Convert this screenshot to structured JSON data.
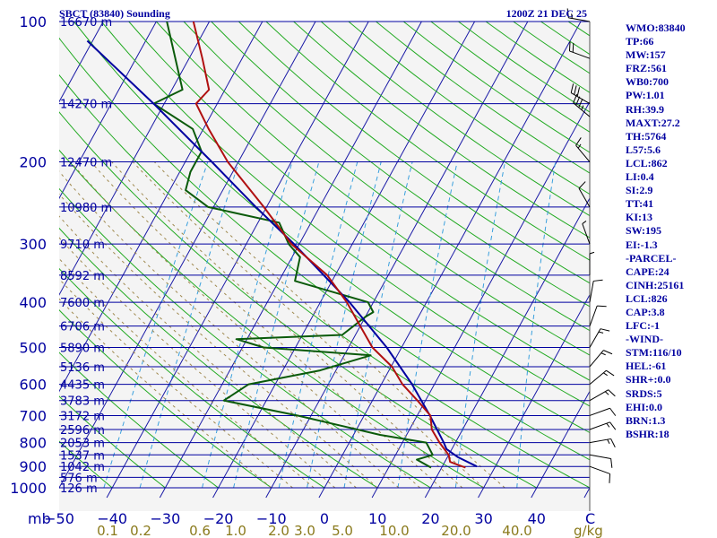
{
  "header": {
    "station": "SBCT (83840) Sounding",
    "time": "1200Z 21 DEC 25"
  },
  "colors": {
    "isobar": "#0000a0",
    "isotherm": "#1a1aa6",
    "dry_adiabat": "#22aa22",
    "mixing_ratio": "#3aa0dd",
    "moist_adiabat": "#a08a50",
    "temperature": "#b01010",
    "dewpoint": "#0a5a0a",
    "parcel": "#0000a0",
    "wind_barb": "#000000"
  },
  "chart_data": {
    "type": "skew-t",
    "title": "SBCT (83840) Sounding",
    "valid_time": "1200Z 21 DEC 25",
    "xlabel": "C",
    "pressure_unit": "mb",
    "mixing_ratio_unit": "g/kg",
    "xlim": [
      -50,
      50
    ],
    "ylim_mb": [
      1000,
      100
    ],
    "y_scale": "log",
    "pressure_ticks": [
      100,
      200,
      300,
      400,
      500,
      600,
      700,
      800,
      900,
      1000
    ],
    "temperature_ticks": [
      -50,
      -40,
      -30,
      -20,
      -10,
      0,
      10,
      20,
      30,
      40
    ],
    "mixing_ratio_labels": [
      "0.1",
      "0.2",
      "0.6",
      "1.0",
      "2.0",
      "3.0",
      "5.0",
      "10.0",
      "20.0",
      "40.0"
    ],
    "height_labels": [
      {
        "p": 100,
        "label": "16670 m"
      },
      {
        "p": 150,
        "label": "14270 m"
      },
      {
        "p": 200,
        "label": "12470 m"
      },
      {
        "p": 250,
        "label": "10980 m"
      },
      {
        "p": 300,
        "label": "9710 m"
      },
      {
        "p": 350,
        "label": "8592 m"
      },
      {
        "p": 400,
        "label": "7600 m"
      },
      {
        "p": 450,
        "label": "6706 m"
      },
      {
        "p": 500,
        "label": "5890 m"
      },
      {
        "p": 550,
        "label": "5136 m"
      },
      {
        "p": 600,
        "label": "4435 m"
      },
      {
        "p": 650,
        "label": "3783 m"
      },
      {
        "p": 700,
        "label": "3172 m"
      },
      {
        "p": 750,
        "label": "2596 m"
      },
      {
        "p": 800,
        "label": "2053 m"
      },
      {
        "p": 850,
        "label": "1537 m"
      },
      {
        "p": 900,
        "label": "1042 m"
      },
      {
        "p": 950,
        "label": "576 m"
      },
      {
        "p": 1000,
        "label": "126 m"
      }
    ],
    "series": [
      {
        "key": "temperature",
        "points": [
          {
            "p": 905,
            "t": 24.5
          },
          {
            "p": 880,
            "t": 21.0
          },
          {
            "p": 850,
            "t": 20.0
          },
          {
            "p": 800,
            "t": 17.0
          },
          {
            "p": 750,
            "t": 14.2
          },
          {
            "p": 700,
            "t": 12.5
          },
          {
            "p": 650,
            "t": 8.5
          },
          {
            "p": 600,
            "t": 4.0
          },
          {
            "p": 550,
            "t": 0.2
          },
          {
            "p": 500,
            "t": -5.5
          },
          {
            "p": 450,
            "t": -10.0
          },
          {
            "p": 400,
            "t": -15.0
          },
          {
            "p": 350,
            "t": -21.5
          },
          {
            "p": 300,
            "t": -31.5
          },
          {
            "p": 250,
            "t": -40.5
          },
          {
            "p": 200,
            "t": -52.0
          },
          {
            "p": 170,
            "t": -59.0
          },
          {
            "p": 150,
            "t": -64.0
          },
          {
            "p": 140,
            "t": -63.0
          },
          {
            "p": 120,
            "t": -67.5
          },
          {
            "p": 100,
            "t": -73.0
          }
        ]
      },
      {
        "key": "dewpoint",
        "points": [
          {
            "p": 905,
            "t": 18.0
          },
          {
            "p": 870,
            "t": 14.5
          },
          {
            "p": 850,
            "t": 17.0
          },
          {
            "p": 800,
            "t": 14.5
          },
          {
            "p": 770,
            "t": 5.0
          },
          {
            "p": 700,
            "t": -12.5
          },
          {
            "p": 650,
            "t": -28.0
          },
          {
            "p": 600,
            "t": -25.0
          },
          {
            "p": 560,
            "t": -13.0
          },
          {
            "p": 520,
            "t": -5.0
          },
          {
            "p": 500,
            "t": -26.0
          },
          {
            "p": 480,
            "t": -32.0
          },
          {
            "p": 470,
            "t": -12.5
          },
          {
            "p": 430,
            "t": -10.0
          },
          {
            "p": 420,
            "t": -9.0
          },
          {
            "p": 400,
            "t": -11.0
          },
          {
            "p": 360,
            "t": -27.0
          },
          {
            "p": 320,
            "t": -28.5
          },
          {
            "p": 300,
            "t": -32.0
          },
          {
            "p": 270,
            "t": -36.0
          },
          {
            "p": 250,
            "t": -51.0
          },
          {
            "p": 230,
            "t": -57.0
          },
          {
            "p": 210,
            "t": -58.0
          },
          {
            "p": 190,
            "t": -58.0
          },
          {
            "p": 170,
            "t": -62.0
          },
          {
            "p": 150,
            "t": -72.0
          },
          {
            "p": 140,
            "t": -68.0
          },
          {
            "p": 100,
            "t": -78.0
          }
        ]
      },
      {
        "key": "parcel",
        "points": [
          {
            "p": 900,
            "t": 26.5
          },
          {
            "p": 860,
            "t": 22.0
          },
          {
            "p": 826,
            "t": 19.0
          },
          {
            "p": 800,
            "t": 17.8
          },
          {
            "p": 700,
            "t": 12.4
          },
          {
            "p": 600,
            "t": 5.8
          },
          {
            "p": 500,
            "t": -2.8
          },
          {
            "p": 400,
            "t": -14.5
          },
          {
            "p": 300,
            "t": -31.0
          },
          {
            "p": 250,
            "t": -42.0
          },
          {
            "p": 200,
            "t": -55.0
          },
          {
            "p": 150,
            "t": -72.0
          },
          {
            "p": 110,
            "t": -91.0
          }
        ]
      }
    ],
    "winds": [
      {
        "p": 900,
        "dir": 110,
        "kt": 10
      },
      {
        "p": 850,
        "dir": 100,
        "kt": 10
      },
      {
        "p": 800,
        "dir": 80,
        "kt": 15
      },
      {
        "p": 750,
        "dir": 70,
        "kt": 15
      },
      {
        "p": 700,
        "dir": 70,
        "kt": 10
      },
      {
        "p": 650,
        "dir": 60,
        "kt": 15
      },
      {
        "p": 600,
        "dir": 50,
        "kt": 15
      },
      {
        "p": 550,
        "dir": 40,
        "kt": 15
      },
      {
        "p": 500,
        "dir": 30,
        "kt": 15
      },
      {
        "p": 450,
        "dir": 20,
        "kt": 10
      },
      {
        "p": 400,
        "dir": 10,
        "kt": 10
      },
      {
        "p": 350,
        "dir": 360,
        "kt": 5
      },
      {
        "p": 300,
        "dir": 340,
        "kt": 5
      },
      {
        "p": 250,
        "dir": 330,
        "kt": 10
      },
      {
        "p": 200,
        "dir": 320,
        "kt": 15
      },
      {
        "p": 160,
        "dir": 310,
        "kt": 35
      },
      {
        "p": 150,
        "dir": 300,
        "kt": 30
      },
      {
        "p": 120,
        "dir": 290,
        "kt": 20
      },
      {
        "p": 100,
        "dir": 280,
        "kt": 15
      }
    ],
    "indices": [
      "WMO:83840",
      "TP:66",
      "MW:157",
      "FRZ:561",
      "WB0:700",
      "PW:1.01",
      "RH:39.9",
      "MAXT:27.2",
      "TH:5764",
      "L57:5.6",
      "LCL:862",
      "LI:0.4",
      "SI:2.9",
      "TT:41",
      "KI:13",
      "SW:195",
      "EI:-1.3",
      "-PARCEL-",
      "CAPE:24",
      "CINH:25161",
      "LCL:826",
      "CAP:3.8",
      "LFC:-1",
      "-WIND-",
      "STM:116/10",
      "HEL:-61",
      "SHR+:0.0",
      "SRDS:5",
      "EHI:0.0",
      "BRN:1.3",
      "BSHR:18"
    ]
  }
}
